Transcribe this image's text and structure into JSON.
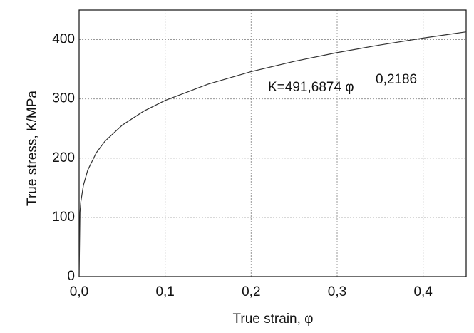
{
  "chart_data": {
    "type": "line",
    "x_label": "True strain, φ",
    "y_label": "True stress, K/MPa",
    "annotation": "K=491,6874 φ",
    "annotation_exponent": "0,2186",
    "x": [
      0,
      0.001,
      0.002,
      0.005,
      0.01,
      0.02,
      0.03,
      0.05,
      0.075,
      0.1,
      0.15,
      0.2,
      0.25,
      0.3,
      0.35,
      0.4,
      0.45
    ],
    "values": [
      0,
      108.6,
      126.4,
      154.4,
      179.7,
      209.1,
      228.5,
      255.5,
      279.2,
      297.4,
      324.9,
      346.0,
      363.3,
      378.1,
      391.0,
      402.6,
      413.1
    ],
    "color": "#333333",
    "xlim": [
      0,
      0.45
    ],
    "ylim": [
      0,
      450
    ],
    "xticks": [
      {
        "value": 0,
        "label": "0,0"
      },
      {
        "value": 0.1,
        "label": "0,1"
      },
      {
        "value": 0.2,
        "label": "0,2"
      },
      {
        "value": 0.3,
        "label": "0,3"
      },
      {
        "value": 0.4,
        "label": "0,4"
      }
    ],
    "yticks": [
      0,
      100,
      200,
      300,
      400
    ],
    "grid": true
  }
}
